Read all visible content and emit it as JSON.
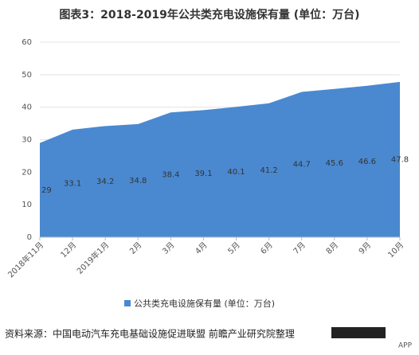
{
  "chart_data": {
    "type": "area",
    "title": "图表3：2018-2019年公共类充电设施保有量 (单位：万台)",
    "categories": [
      "2018年11月",
      "12月",
      "2019年1月",
      "2月",
      "3月",
      "4月",
      "5月",
      "6月",
      "7月",
      "8月",
      "9月",
      "10月"
    ],
    "series": [
      {
        "name": "公共类充电设施保有量 (单位：万台)",
        "color": "#4a89d0",
        "values": [
          29,
          33.1,
          34.2,
          34.8,
          38.4,
          39.1,
          40.1,
          41.2,
          44.7,
          45.6,
          46.6,
          47.8
        ]
      }
    ],
    "ylim": [
      0,
      60
    ],
    "yticks": [
      0,
      10,
      20,
      30,
      40,
      50,
      60
    ],
    "grid": true,
    "legend": "bottom",
    "source": "资料来源：中国电动汽车充电基础设施促进联盟 前瞻产业研究院整理",
    "watermark": "APP"
  }
}
